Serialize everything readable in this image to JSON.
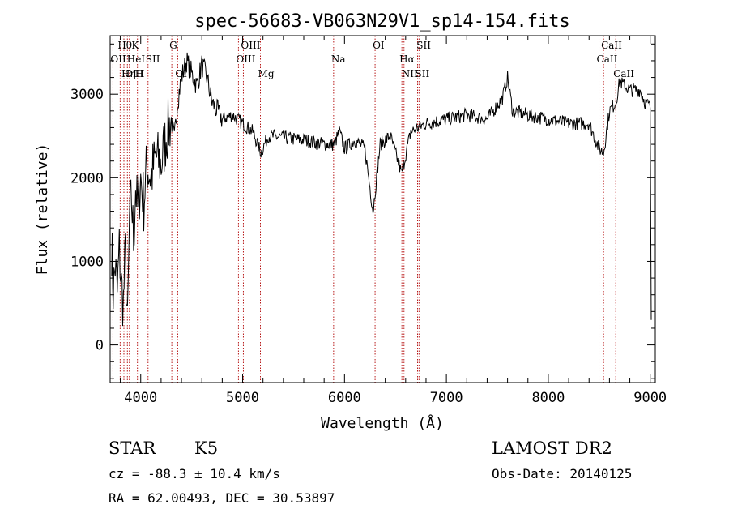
{
  "chart_data": {
    "type": "line",
    "title": "spec-56683-VB063N29V1_sp14-154.fits",
    "xlabel": "Wavelength (Å)",
    "ylabel": "Flux (relative)",
    "xlim": [
      3700,
      9050
    ],
    "ylim": [
      -450,
      3700
    ],
    "x_ticks": [
      4000,
      5000,
      6000,
      7000,
      8000,
      9000
    ],
    "x_tick_labels": [
      "4000",
      "5000",
      "6000",
      "7000",
      "8000",
      "9000"
    ],
    "y_ticks": [
      0,
      1000,
      2000,
      3000
    ],
    "y_tick_labels": [
      "0",
      "1000",
      "2000",
      "3000"
    ],
    "grid": false,
    "series": [
      {
        "color": "#000000",
        "points": [
          [
            3715,
            1200
          ],
          [
            3730,
            650
          ],
          [
            3750,
            950
          ],
          [
            3770,
            600
          ],
          [
            3790,
            1150
          ],
          [
            3810,
            700
          ],
          [
            3830,
            500
          ],
          [
            3850,
            1100
          ],
          [
            3870,
            150
          ],
          [
            3890,
            1500
          ],
          [
            3910,
            1750
          ],
          [
            3930,
            1250
          ],
          [
            3950,
            1900
          ],
          [
            3970,
            1600
          ],
          [
            4000,
            2000
          ],
          [
            4030,
            1700
          ],
          [
            4060,
            2150
          ],
          [
            4100,
            2000
          ],
          [
            4150,
            2250
          ],
          [
            4200,
            2150
          ],
          [
            4250,
            2500
          ],
          [
            4300,
            2700
          ],
          [
            4330,
            2450
          ],
          [
            4360,
            2900
          ],
          [
            4400,
            3200
          ],
          [
            4450,
            3400
          ],
          [
            4500,
            3250
          ],
          [
            4550,
            3100
          ],
          [
            4600,
            3350
          ],
          [
            4650,
            3200
          ],
          [
            4700,
            2900
          ],
          [
            4750,
            2800
          ],
          [
            4800,
            2700
          ],
          [
            4900,
            2750
          ],
          [
            5000,
            2650
          ],
          [
            5100,
            2550
          ],
          [
            5180,
            2300
          ],
          [
            5250,
            2500
          ],
          [
            5400,
            2480
          ],
          [
            5600,
            2450
          ],
          [
            5800,
            2400
          ],
          [
            5900,
            2400
          ],
          [
            5950,
            2550
          ],
          [
            6000,
            2350
          ],
          [
            6100,
            2450
          ],
          [
            6200,
            2350
          ],
          [
            6280,
            1600
          ],
          [
            6350,
            2400
          ],
          [
            6450,
            2500
          ],
          [
            6560,
            2050
          ],
          [
            6650,
            2550
          ],
          [
            6800,
            2650
          ],
          [
            7000,
            2700
          ],
          [
            7200,
            2750
          ],
          [
            7400,
            2700
          ],
          [
            7550,
            2950
          ],
          [
            7600,
            3200
          ],
          [
            7650,
            2800
          ],
          [
            7800,
            2750
          ],
          [
            8000,
            2700
          ],
          [
            8200,
            2650
          ],
          [
            8400,
            2650
          ],
          [
            8498,
            2350
          ],
          [
            8542,
            2300
          ],
          [
            8600,
            2800
          ],
          [
            8662,
            2900
          ],
          [
            8700,
            3150
          ],
          [
            8800,
            3050
          ],
          [
            8900,
            3050
          ],
          [
            8950,
            2900
          ],
          [
            9000,
            2850
          ],
          [
            9010,
            300
          ]
        ]
      }
    ],
    "lines": [
      {
        "label": "Hθ",
        "x": 3798,
        "row": 1
      },
      {
        "label": "K",
        "x": 3934,
        "row": 1
      },
      {
        "label": "G",
        "x": 4305,
        "row": 1
      },
      {
        "label": "OIII",
        "x": 5007,
        "row": 1
      },
      {
        "label": "OI",
        "x": 6300,
        "row": 1
      },
      {
        "label": "SII",
        "x": 6731,
        "row": 1
      },
      {
        "label": "CaII",
        "x": 8542,
        "row": 1
      },
      {
        "label": "OII",
        "x": 3727,
        "row": 2
      },
      {
        "label": "HeI",
        "x": 3889,
        "row": 2
      },
      {
        "label": "SII",
        "x": 4072,
        "row": 2
      },
      {
        "label": "OIII",
        "x": 4959,
        "row": 2
      },
      {
        "label": "Na",
        "x": 5893,
        "row": 2
      },
      {
        "label": "Hα",
        "x": 6563,
        "row": 2
      },
      {
        "label": "CaII",
        "x": 8498,
        "row": 2
      },
      {
        "label": "OIII",
        "x": 3869,
        "row": 3
      },
      {
        "label": "Hη",
        "x": 3835,
        "row": 3
      },
      {
        "label": "H",
        "x": 3968,
        "row": 3
      },
      {
        "label": "OI",
        "x": 4363,
        "row": 3
      },
      {
        "label": "Mg",
        "x": 5175,
        "row": 3
      },
      {
        "label": "NII",
        "x": 6584,
        "row": 3
      },
      {
        "label": "SII",
        "x": 6717,
        "row": 3
      },
      {
        "label": "CaII",
        "x": 8662,
        "row": 3
      }
    ],
    "annotations": {
      "class_label": "STAR",
      "subclass_label": "K5",
      "survey": "LAMOST DR2",
      "cz": "cz = -88.3 ± 10.4 km/s",
      "obs_date": "Obs-Date: 20140125",
      "coords": "RA =  62.00493, DEC =  30.53897"
    }
  }
}
